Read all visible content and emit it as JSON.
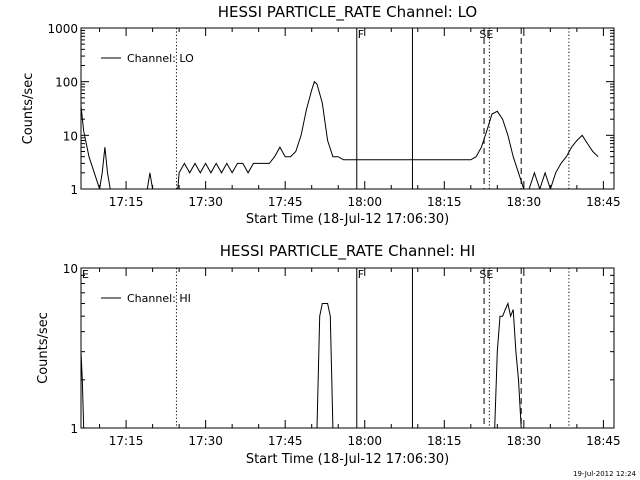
{
  "chart_data": [
    {
      "type": "line",
      "title": "HESSI PARTICLE_RATE Channel: LO",
      "xlabel": "Start Time (18-Jul-12 17:06:30)",
      "ylabel": "Counts/sec",
      "yscale": "log",
      "xlim": [
        "17:06:30",
        "18:47:00"
      ],
      "ylim": [
        1,
        1000
      ],
      "x_ticks": [
        "17:15",
        "17:30",
        "17:45",
        "18:00",
        "18:15",
        "18:30",
        "18:45"
      ],
      "y_ticks": [
        "1",
        "10",
        "100",
        "1000"
      ],
      "legend": "top-left",
      "series": [
        {
          "name": "Channel: LO",
          "x": [
            "17:06:30",
            "17:07:00",
            "17:08:00",
            "17:09:00",
            "17:10:00",
            "17:10:30",
            "17:11:00",
            "17:11:30",
            "17:12:00",
            "17:12:30",
            "17:13:00",
            "17:19:00",
            "17:19:30",
            "17:20:00",
            "17:24:30",
            "17:24:45",
            "17:25:00",
            "17:26:00",
            "17:27:00",
            "17:28:00",
            "17:29:00",
            "17:30:00",
            "17:31:00",
            "17:32:00",
            "17:33:00",
            "17:34:00",
            "17:35:00",
            "17:36:00",
            "17:37:00",
            "17:38:00",
            "17:39:00",
            "17:40:00",
            "17:41:00",
            "17:42:00",
            "17:43:00",
            "17:44:00",
            "17:45:00",
            "17:46:00",
            "17:47:00",
            "17:48:00",
            "17:49:00",
            "17:50:00",
            "17:50:30",
            "17:51:00",
            "17:52:00",
            "17:53:00",
            "17:54:00",
            "17:55:00",
            "17:56:00",
            "17:57:00",
            "17:58:00",
            "17:59:00",
            "18:00:00",
            "18:02:00",
            "18:04:00",
            "18:06:00",
            "18:08:00",
            "18:10:00",
            "18:12:00",
            "18:14:00",
            "18:16:00",
            "18:18:00",
            "18:20:00",
            "18:21:00",
            "18:22:00",
            "18:23:00",
            "18:24:00",
            "18:25:00",
            "18:26:00",
            "18:27:00",
            "18:28:00",
            "18:29:00",
            "18:30:00",
            "18:30:30",
            "18:31:00",
            "18:32:00",
            "18:33:00",
            "18:34:00",
            "18:35:00",
            "18:36:00",
            "18:37:00",
            "18:38:00",
            "18:39:00",
            "18:40:00",
            "18:41:00",
            "18:42:00",
            "18:43:00",
            "18:44:00"
          ],
          "y": [
            35,
            12,
            4,
            2,
            1,
            2,
            6,
            2,
            1,
            1,
            1,
            1,
            2,
            1,
            1,
            1,
            2,
            3,
            2,
            3,
            2,
            3,
            2,
            3,
            2,
            3,
            2,
            3,
            3,
            2,
            3,
            3,
            3,
            3,
            4,
            6,
            4,
            4,
            5,
            10,
            30,
            70,
            100,
            90,
            40,
            8,
            4,
            4,
            3.5,
            3.5,
            3.5,
            3.5,
            3.5,
            3.5,
            3.5,
            3.5,
            3.5,
            3.5,
            3.5,
            3.5,
            3.5,
            3.5,
            3.5,
            4,
            6,
            12,
            25,
            28,
            20,
            10,
            4,
            2,
            1,
            1,
            1,
            2,
            1,
            2,
            1,
            2,
            3,
            4,
            6,
            8,
            10,
            7,
            5,
            4
          ]
        }
      ],
      "vlines": [
        {
          "time": "17:24:30",
          "style": "dotted"
        },
        {
          "time": "17:58:30",
          "style": "solid",
          "label": "F"
        },
        {
          "time": "18:09:00",
          "style": "solid"
        },
        {
          "time": "18:22:30",
          "style": "dashed"
        },
        {
          "time": "18:23:30",
          "style": "dotted",
          "label": "SE"
        },
        {
          "time": "18:29:30",
          "style": "dashed"
        },
        {
          "time": "18:38:30",
          "style": "dotted"
        }
      ]
    },
    {
      "type": "line",
      "title": "HESSI PARTICLE_RATE Channel: HI",
      "xlabel": "Start Time (18-Jul-12 17:06:30)",
      "ylabel": "Counts/sec",
      "yscale": "log",
      "xlim": [
        "17:06:30",
        "18:47:00"
      ],
      "ylim": [
        1,
        10
      ],
      "x_ticks": [
        "17:15",
        "17:30",
        "17:45",
        "18:00",
        "18:15",
        "18:30",
        "18:45"
      ],
      "y_ticks": [
        "1",
        "10"
      ],
      "legend": "top-left",
      "series": [
        {
          "name": "Channel: HI",
          "x": [
            "17:06:30",
            "17:06:45",
            "17:07:00",
            "17:51:00",
            "17:51:30",
            "17:52:00",
            "17:52:30",
            "17:53:00",
            "17:53:30",
            "17:54:00",
            "18:24:30",
            "18:25:00",
            "18:25:30",
            "18:26:00",
            "18:26:30",
            "18:27:00",
            "18:27:30",
            "18:28:00",
            "18:28:30",
            "18:29:00",
            "18:29:30"
          ],
          "y": [
            3,
            2,
            1,
            1,
            5,
            6,
            6,
            6,
            5,
            1,
            1,
            3,
            5,
            5,
            5.5,
            6,
            5,
            5.5,
            3,
            2,
            1
          ]
        }
      ],
      "vlines": [
        {
          "time": "17:06:30",
          "style": "none",
          "label": "E"
        },
        {
          "time": "17:24:30",
          "style": "dotted"
        },
        {
          "time": "17:58:30",
          "style": "solid",
          "label": "F"
        },
        {
          "time": "18:09:00",
          "style": "solid"
        },
        {
          "time": "18:22:30",
          "style": "dashed"
        },
        {
          "time": "18:23:30",
          "style": "dotted",
          "label": "SE"
        },
        {
          "time": "18:29:30",
          "style": "dashed"
        },
        {
          "time": "18:38:30",
          "style": "dotted"
        }
      ]
    }
  ],
  "timestamp": "19-Jul-2012 12:24"
}
